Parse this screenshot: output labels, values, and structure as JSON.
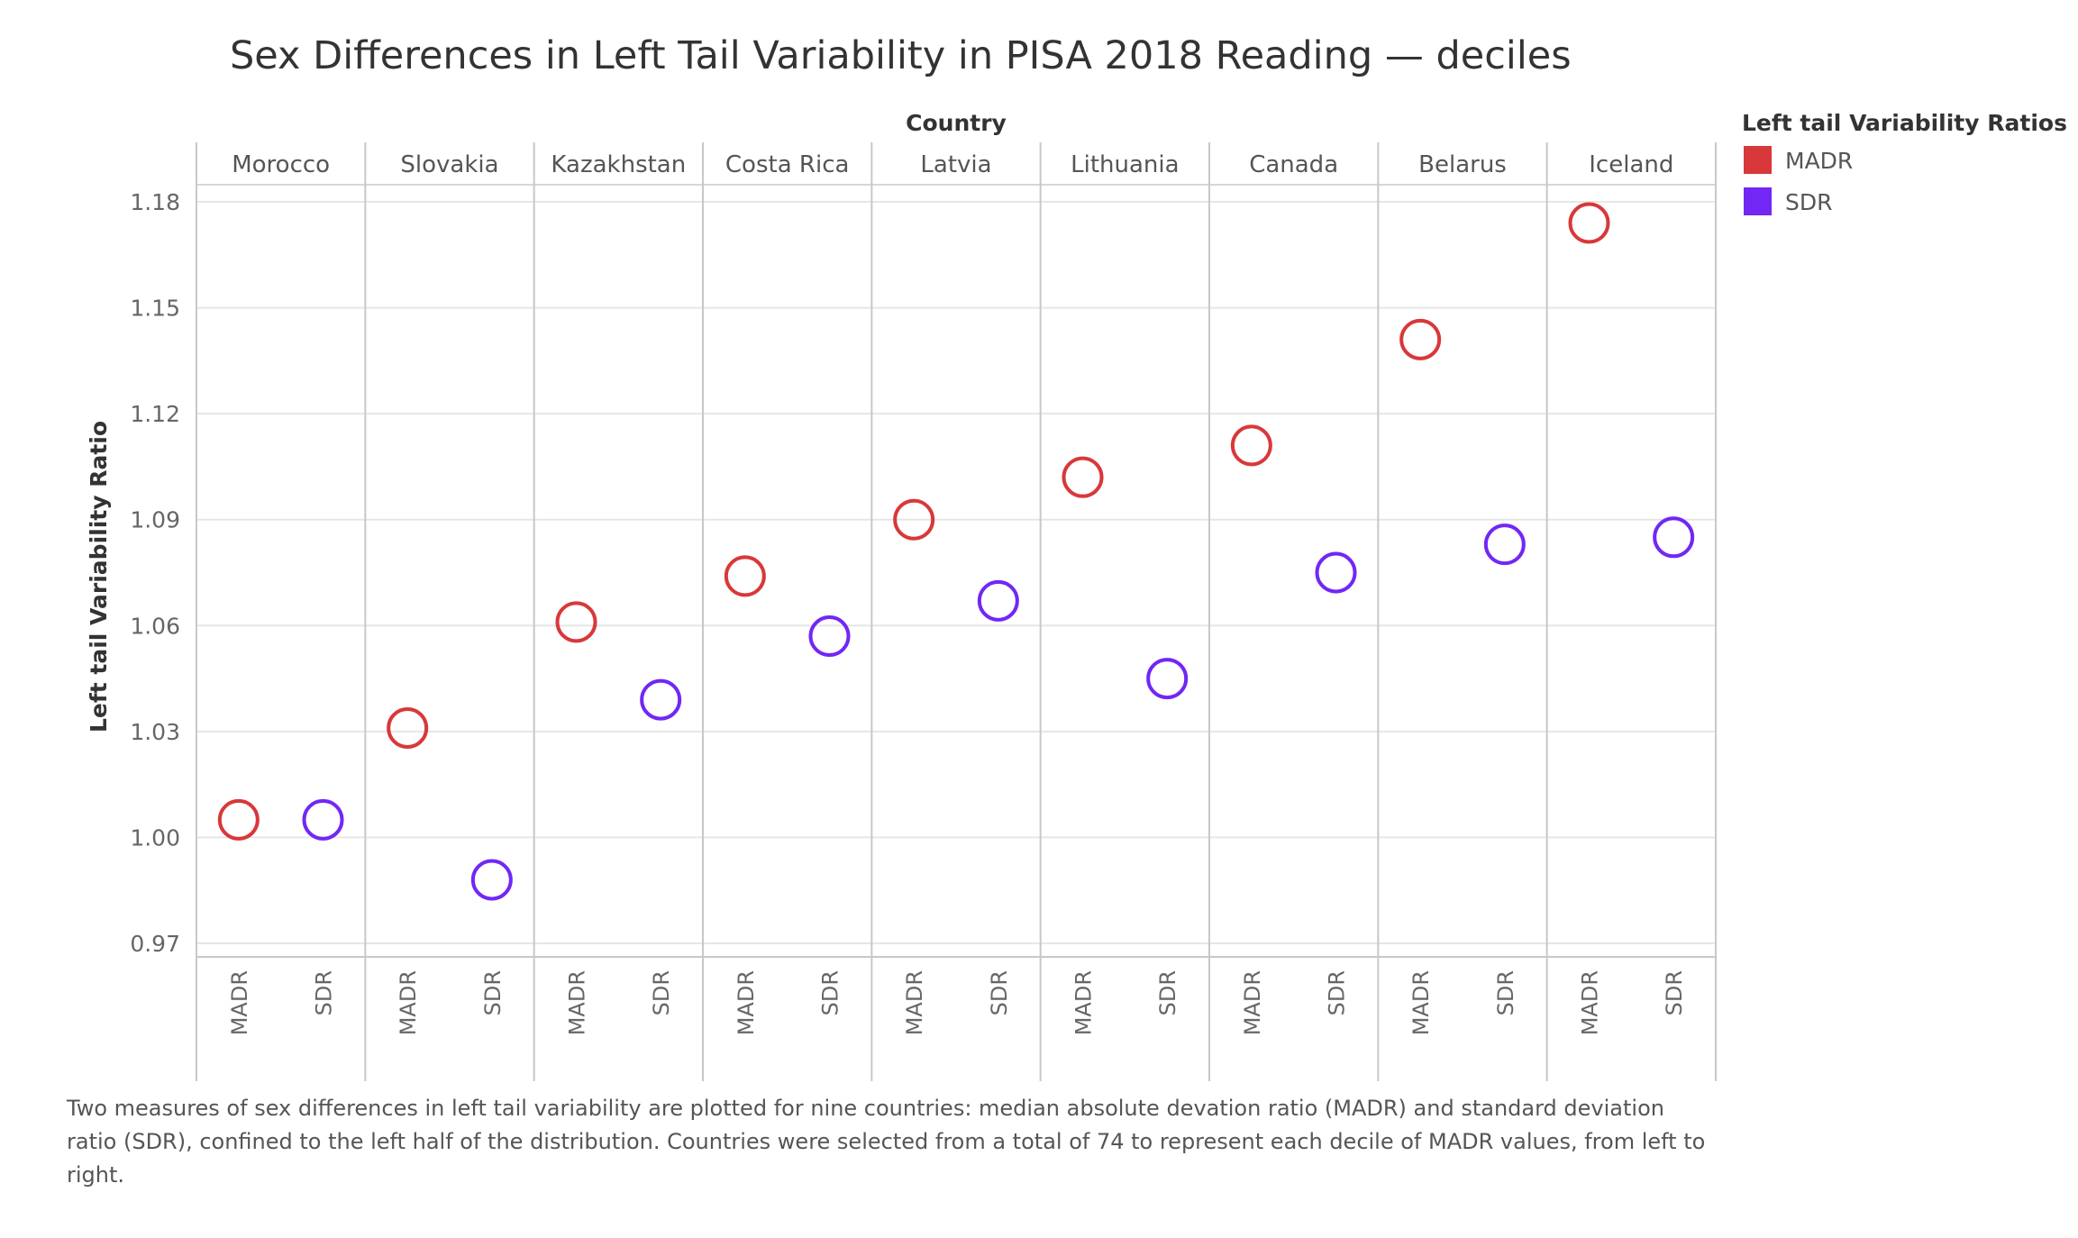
{
  "chart_data": {
    "type": "scatter",
    "title": "Sex Differences in Left Tail Variability in PISA 2018 Reading — deciles",
    "column_header": "Country",
    "ylabel": "Left tail Variability Ratio",
    "ylim": [
      0.963,
      1.19
    ],
    "yticks": [
      0.97,
      1.0,
      1.03,
      1.06,
      1.09,
      1.12,
      1.15,
      1.18
    ],
    "ytick_labels": [
      "0.97",
      "1.00",
      "1.03",
      "1.06",
      "1.09",
      "1.12",
      "1.15",
      "1.18"
    ],
    "grid": true,
    "legend": {
      "title": "Left tail Variability Ratios",
      "placement": "right",
      "items": [
        {
          "name": "MADR",
          "color": "#d8383a"
        },
        {
          "name": "SDR",
          "color": "#7227f5"
        }
      ]
    },
    "measures": [
      "MADR",
      "SDR"
    ],
    "categories": [
      "Morocco",
      "Slovakia",
      "Kazakhstan",
      "Costa Rica",
      "Latvia",
      "Lithuania",
      "Canada",
      "Belarus",
      "Iceland"
    ],
    "series": [
      {
        "name": "MADR",
        "color": "#d8383a",
        "values": [
          1.005,
          1.031,
          1.061,
          1.074,
          1.09,
          1.102,
          1.111,
          1.141,
          1.174
        ]
      },
      {
        "name": "SDR",
        "color": "#7227f5",
        "values": [
          1.005,
          0.988,
          1.039,
          1.057,
          1.067,
          1.045,
          1.075,
          1.083,
          1.085
        ]
      }
    ],
    "caption": "Two measures of sex differences in left tail variability are plotted for nine countries: median absolute devation ratio (MADR) and standard deviation ratio (SDR), confined to the left half of the distribution. Countries were selected from a total of 74 to represent each decile of MADR values, from left to right."
  }
}
